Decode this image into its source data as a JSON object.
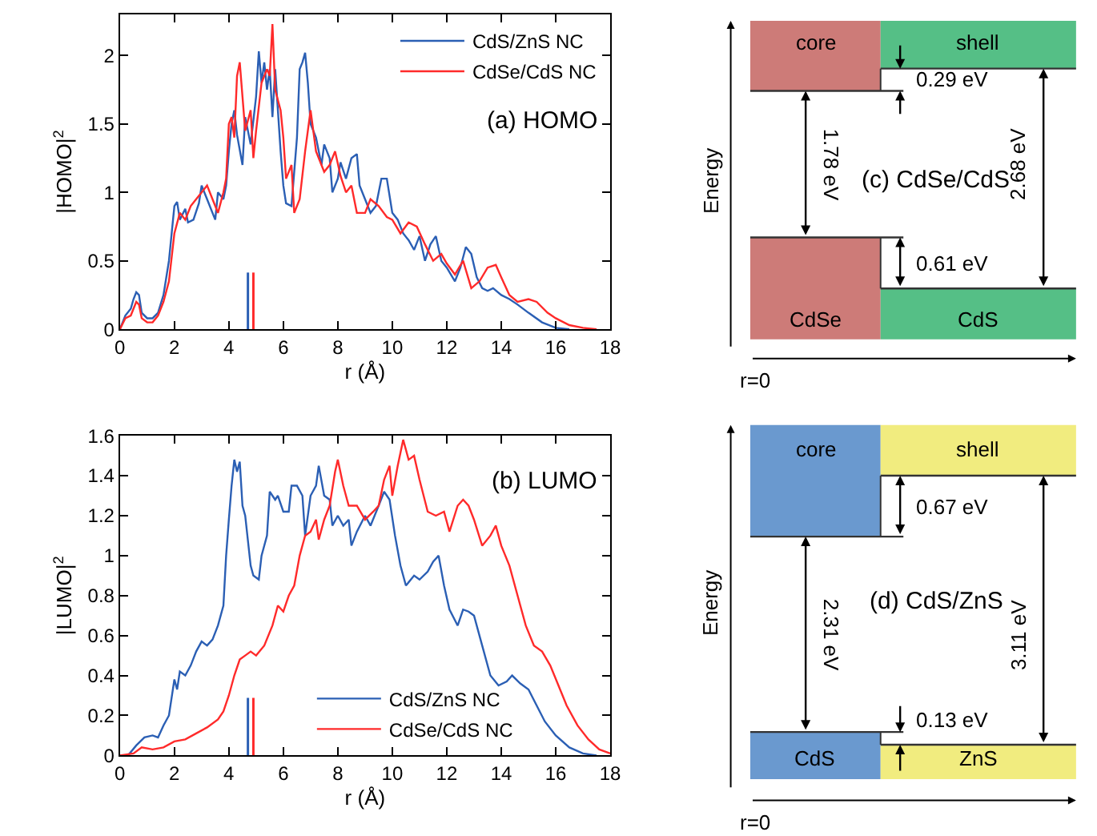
{
  "chart_data": [
    {
      "type": "line",
      "title": "(a) HOMO",
      "xlabel": "r (Å)",
      "ylabel": "|HOMO|$^{2}$",
      "xlim": [
        0,
        18
      ],
      "xticks": [
        0,
        2,
        4,
        6,
        8,
        10,
        12,
        14,
        16,
        18
      ],
      "ylim": [
        0,
        2.3
      ],
      "yticks": [
        0,
        0.5,
        1,
        1.5,
        2
      ],
      "legend": "top right",
      "series": [
        {
          "name": "CdS/ZnS NC",
          "color": "#2b5fb4",
          "x": [
            0,
            0.2,
            0.4,
            0.5,
            0.6,
            0.7,
            0.8,
            1.0,
            1.2,
            1.4,
            1.6,
            1.8,
            1.9,
            2.0,
            2.1,
            2.2,
            2.4,
            2.5,
            2.7,
            2.9,
            3.0,
            3.2,
            3.4,
            3.5,
            3.6,
            3.8,
            3.9,
            4.0,
            4.1,
            4.2,
            4.3,
            4.5,
            4.6,
            4.8,
            5.0,
            5.1,
            5.2,
            5.3,
            5.4,
            5.5,
            5.6,
            5.7,
            5.9,
            6.0,
            6.1,
            6.3,
            6.5,
            6.6,
            6.7,
            6.8,
            6.9,
            7.0,
            7.2,
            7.4,
            7.5,
            7.7,
            7.8,
            8.0,
            8.1,
            8.3,
            8.5,
            8.7,
            8.8,
            9.0,
            9.2,
            9.4,
            9.6,
            9.8,
            10.0,
            10.2,
            10.4,
            10.6,
            10.8,
            11.0,
            11.2,
            11.4,
            11.6,
            11.8,
            12.0,
            12.3,
            12.5,
            12.7,
            12.9,
            13.1,
            13.3,
            13.5,
            13.7,
            14.0,
            14.3,
            14.6,
            15.0,
            15.5,
            16.0,
            16.5
          ],
          "values": [
            0,
            0.1,
            0.15,
            0.22,
            0.27,
            0.25,
            0.12,
            0.08,
            0.08,
            0.12,
            0.25,
            0.5,
            0.7,
            0.9,
            0.93,
            0.8,
            0.88,
            0.78,
            0.8,
            0.92,
            1.05,
            0.95,
            0.85,
            0.8,
            1.0,
            0.95,
            1.05,
            1.3,
            1.5,
            1.6,
            1.42,
            1.2,
            1.55,
            1.35,
            1.7,
            2.03,
            1.8,
            1.95,
            1.75,
            1.9,
            1.55,
            1.9,
            1.3,
            1.05,
            0.92,
            0.9,
            1.4,
            1.9,
            1.95,
            2.02,
            1.8,
            1.5,
            1.4,
            1.2,
            1.35,
            1.25,
            1.0,
            1.1,
            1.22,
            1.1,
            1.25,
            1.28,
            1.05,
            0.95,
            0.85,
            0.9,
            1.1,
            1.1,
            0.85,
            0.8,
            0.7,
            0.65,
            0.58,
            0.68,
            0.5,
            0.62,
            0.68,
            0.5,
            0.45,
            0.35,
            0.45,
            0.6,
            0.55,
            0.38,
            0.3,
            0.28,
            0.3,
            0.25,
            0.22,
            0.18,
            0.12,
            0.05,
            0.01,
            0
          ]
        },
        {
          "name": "CdSe/CdS NC",
          "color": "#ff2a2a",
          "x": [
            0,
            0.2,
            0.4,
            0.5,
            0.6,
            0.7,
            0.8,
            1.0,
            1.2,
            1.4,
            1.6,
            1.8,
            2.0,
            2.2,
            2.4,
            2.6,
            2.8,
            3.0,
            3.2,
            3.4,
            3.6,
            3.8,
            3.9,
            4.0,
            4.1,
            4.2,
            4.3,
            4.4,
            4.5,
            4.6,
            4.8,
            4.9,
            5.0,
            5.2,
            5.4,
            5.5,
            5.6,
            5.7,
            5.9,
            6.0,
            6.1,
            6.3,
            6.4,
            6.6,
            6.8,
            7.0,
            7.2,
            7.5,
            7.7,
            7.9,
            8.1,
            8.3,
            8.5,
            8.7,
            9.0,
            9.2,
            9.5,
            9.8,
            10.0,
            10.3,
            10.6,
            10.9,
            11.2,
            11.5,
            11.8,
            12.0,
            12.3,
            12.6,
            12.9,
            13.2,
            13.5,
            13.8,
            14.0,
            14.3,
            14.6,
            15.0,
            15.3,
            15.7,
            16.0,
            16.5,
            17.0,
            17.5
          ],
          "values": [
            0,
            0.08,
            0.1,
            0.15,
            0.2,
            0.18,
            0.08,
            0.05,
            0.05,
            0.1,
            0.2,
            0.35,
            0.7,
            0.85,
            0.8,
            0.9,
            0.95,
            1.0,
            1.05,
            0.95,
            0.85,
            1.0,
            1.1,
            1.5,
            1.55,
            1.4,
            1.85,
            1.95,
            1.7,
            1.45,
            1.6,
            1.25,
            1.45,
            1.8,
            1.9,
            1.85,
            2.23,
            1.75,
            1.6,
            1.4,
            1.1,
            1.2,
            0.85,
            0.95,
            1.3,
            1.6,
            1.3,
            1.15,
            1.2,
            1.3,
            1.12,
            1.0,
            1.05,
            0.85,
            0.85,
            0.95,
            0.9,
            0.82,
            0.8,
            0.7,
            0.78,
            0.75,
            0.62,
            0.5,
            0.55,
            0.48,
            0.4,
            0.5,
            0.3,
            0.35,
            0.45,
            0.47,
            0.38,
            0.25,
            0.2,
            0.22,
            0.2,
            0.12,
            0.08,
            0.03,
            0.01,
            0
          ]
        }
      ],
      "ref_lines": [
        {
          "axis": "x",
          "value": 4.7,
          "color": "#2b5fb4"
        },
        {
          "axis": "x",
          "value": 4.9,
          "color": "#ff2a2a"
        }
      ]
    },
    {
      "type": "other",
      "title": "(c) CdSe/CdS",
      "xlabel": "r=0",
      "ylabel": "Energy",
      "colors": [
        "#cd7b78",
        "#55bf86"
      ],
      "annotations": [
        "core",
        "shell",
        "0.29 eV",
        "1.78 eV",
        "2.68 eV",
        "0.61 eV",
        "CdSe",
        "CdS"
      ]
    },
    {
      "type": "line",
      "title": "(b) LUMO",
      "xlabel": "r (Å)",
      "ylabel": "|LUMO|$^{2}$",
      "xlim": [
        0,
        18
      ],
      "xticks": [
        0,
        2,
        4,
        6,
        8,
        10,
        12,
        14,
        16,
        18
      ],
      "ylim": [
        0,
        1.6
      ],
      "yticks": [
        0,
        0.2,
        0.4,
        0.6,
        0.8,
        1,
        1.2,
        1.4,
        1.6
      ],
      "legend": "bottom right",
      "series": [
        {
          "name": "CdS/ZnS NC",
          "color": "#2b5fb4",
          "x": [
            0,
            0.3,
            0.6,
            0.9,
            1.2,
            1.4,
            1.6,
            1.8,
            2.0,
            2.1,
            2.2,
            2.4,
            2.6,
            2.8,
            3.0,
            3.2,
            3.4,
            3.6,
            3.8,
            3.9,
            4.0,
            4.1,
            4.2,
            4.3,
            4.4,
            4.5,
            4.6,
            4.8,
            4.9,
            5.1,
            5.2,
            5.4,
            5.5,
            5.7,
            5.8,
            6.0,
            6.2,
            6.3,
            6.5,
            6.7,
            6.8,
            7.0,
            7.2,
            7.3,
            7.5,
            7.7,
            7.8,
            8.0,
            8.2,
            8.4,
            8.5,
            8.7,
            9.0,
            9.2,
            9.5,
            9.7,
            9.9,
            10.1,
            10.3,
            10.5,
            10.8,
            11.0,
            11.3,
            11.5,
            11.7,
            11.9,
            12.1,
            12.4,
            12.6,
            12.8,
            13.0,
            13.3,
            13.6,
            13.9,
            14.2,
            14.4,
            14.7,
            15.0,
            15.3,
            15.6,
            16.0,
            16.5,
            17.0,
            17.5
          ],
          "values": [
            0,
            0,
            0.05,
            0.09,
            0.1,
            0.09,
            0.15,
            0.2,
            0.38,
            0.33,
            0.42,
            0.4,
            0.45,
            0.52,
            0.57,
            0.55,
            0.58,
            0.65,
            0.75,
            1.0,
            1.18,
            1.35,
            1.48,
            1.42,
            1.47,
            1.25,
            1.2,
            0.95,
            0.9,
            0.88,
            1.0,
            1.1,
            1.32,
            1.28,
            1.3,
            1.22,
            1.22,
            1.35,
            1.35,
            1.3,
            1.1,
            1.3,
            1.35,
            1.45,
            1.3,
            1.28,
            1.15,
            1.2,
            1.15,
            1.18,
            1.05,
            1.12,
            1.2,
            1.15,
            1.25,
            1.32,
            1.28,
            1.1,
            0.95,
            0.85,
            0.9,
            0.88,
            0.92,
            0.97,
            1.0,
            0.85,
            0.73,
            0.65,
            0.73,
            0.72,
            0.7,
            0.55,
            0.4,
            0.35,
            0.37,
            0.4,
            0.36,
            0.33,
            0.25,
            0.17,
            0.1,
            0.04,
            0.01,
            0
          ]
        },
        {
          "name": "CdSe/CdS NC",
          "color": "#ff2a2a",
          "x": [
            0,
            0.5,
            0.8,
            1.2,
            1.6,
            2.0,
            2.4,
            2.8,
            3.2,
            3.6,
            3.8,
            4.0,
            4.2,
            4.4,
            4.6,
            4.8,
            5.0,
            5.3,
            5.6,
            5.8,
            6.0,
            6.2,
            6.4,
            6.6,
            6.8,
            7.0,
            7.2,
            7.3,
            7.5,
            7.7,
            7.9,
            8.0,
            8.2,
            8.4,
            8.7,
            9.0,
            9.3,
            9.5,
            9.7,
            9.9,
            10.0,
            10.2,
            10.4,
            10.6,
            10.8,
            11.0,
            11.3,
            11.6,
            11.9,
            12.1,
            12.4,
            12.6,
            12.8,
            13.0,
            13.3,
            13.6,
            13.8,
            14.0,
            14.3,
            14.6,
            14.9,
            15.2,
            15.5,
            15.8,
            16.1,
            16.4,
            16.8,
            17.2,
            17.6,
            18.0
          ],
          "values": [
            0,
            0.01,
            0.04,
            0.03,
            0.04,
            0.07,
            0.08,
            0.11,
            0.14,
            0.18,
            0.22,
            0.3,
            0.4,
            0.48,
            0.5,
            0.52,
            0.5,
            0.55,
            0.65,
            0.75,
            0.72,
            0.8,
            0.85,
            1.0,
            1.1,
            1.12,
            1.18,
            1.08,
            1.18,
            1.25,
            1.42,
            1.48,
            1.35,
            1.25,
            1.25,
            1.18,
            1.22,
            1.25,
            1.38,
            1.45,
            1.3,
            1.45,
            1.58,
            1.48,
            1.5,
            1.38,
            1.22,
            1.2,
            1.22,
            1.12,
            1.25,
            1.28,
            1.25,
            1.18,
            1.05,
            1.1,
            1.15,
            1.05,
            0.95,
            0.8,
            0.65,
            0.55,
            0.52,
            0.45,
            0.35,
            0.25,
            0.15,
            0.08,
            0.03,
            0.01
          ]
        }
      ],
      "ref_lines": [
        {
          "axis": "x",
          "value": 4.7,
          "color": "#2b5fb4"
        },
        {
          "axis": "x",
          "value": 4.9,
          "color": "#ff2a2a"
        }
      ]
    },
    {
      "type": "other",
      "title": "(d) CdS/ZnS",
      "xlabel": "r=0",
      "ylabel": "Energy",
      "colors": [
        "#6a99cf",
        "#f1ec7f"
      ],
      "annotations": [
        "core",
        "shell",
        "0.67 eV",
        "2.31 eV",
        "3.11 eV",
        "0.13 eV",
        "CdS",
        "ZnS"
      ]
    }
  ]
}
